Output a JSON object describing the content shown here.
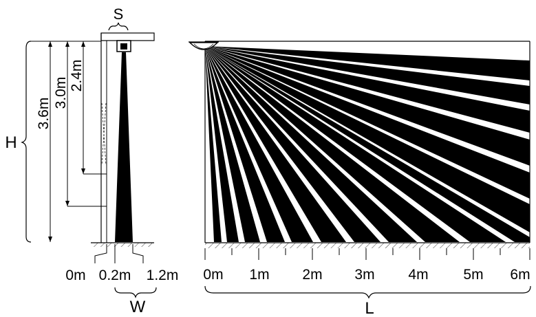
{
  "side_view": {
    "label_s": "S",
    "label_h": "H",
    "label_w": "W",
    "heights": [
      "3.6m",
      "3.0m",
      "2.4m"
    ],
    "width_ticks": [
      "0m",
      "0.2m",
      "1.2m"
    ]
  },
  "front_view": {
    "label_l": "L",
    "distance_ticks": [
      "0m",
      "1m",
      "2m",
      "3m",
      "4m",
      "5m",
      "6m"
    ]
  }
}
